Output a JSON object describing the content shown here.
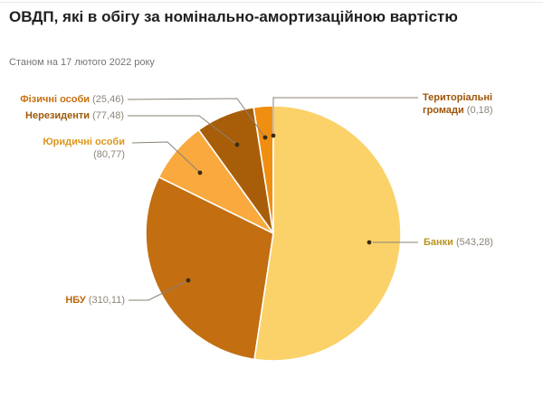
{
  "chart_data": {
    "type": "pie",
    "title": "ОВДП, які в обігу за номінально-амортизаційною вартістю",
    "subtitle": "Станом на 17 лютого 2022 року",
    "direction": "clockwise",
    "start_angle": "12-oclock",
    "legend_position": "none",
    "label_style": "callout",
    "total": 1037.28,
    "series": [
      {
        "id": "banky",
        "name": "Банки",
        "value": 543.28,
        "display": "(543,28)",
        "color": "#FBD269",
        "label_color": "#B8941F"
      },
      {
        "id": "nbu",
        "name": "НБУ",
        "value": 310.11,
        "display": "(310,11)",
        "color": "#C26E11",
        "label_color": "#BC680C"
      },
      {
        "id": "yurydychni",
        "name": "Юридичні особи",
        "value": 80.77,
        "display": "(80,77)",
        "color": "#F9A93E",
        "label_color": "#DC971F"
      },
      {
        "id": "nerezydenty",
        "name": "Нерезиденти",
        "value": 77.48,
        "display": "(77,48)",
        "color": "#A85E08",
        "label_color": "#9E5A08"
      },
      {
        "id": "fizychni",
        "name": "Фізичні особи",
        "value": 25.46,
        "display": "(25,46)",
        "color": "#F08E11",
        "label_color": "#C9700D"
      },
      {
        "id": "terhromady",
        "name": "Територіальні громади",
        "value": 0.18,
        "display": "(0,18)",
        "color": "#7A4A03",
        "label_color": "#9D5407"
      }
    ],
    "value_text_color": "#8D8578",
    "callout_line_color": "#8A8176",
    "callout_dot_color": "#3A2B15",
    "slice_stroke_color": "#FFFFFF"
  }
}
